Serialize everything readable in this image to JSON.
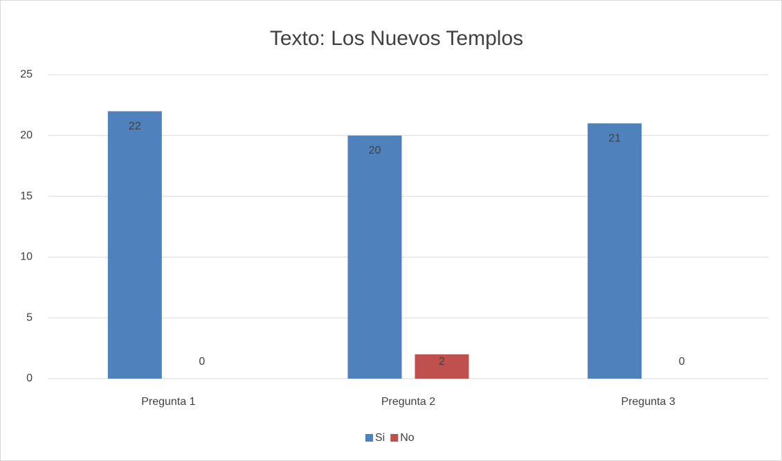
{
  "chart_data": {
    "type": "bar",
    "title": "Texto: Los Nuevos Templos",
    "categories": [
      "Pregunta 1",
      "Pregunta 2",
      "Pregunta 3"
    ],
    "series": [
      {
        "name": "Si",
        "color": "#4f81bd",
        "values": [
          22,
          20,
          21
        ]
      },
      {
        "name": "No",
        "color": "#c0504d",
        "values": [
          0,
          2,
          0
        ]
      }
    ],
    "ylim": [
      0,
      25
    ],
    "yticks": [
      0,
      5,
      10,
      15,
      20,
      25
    ],
    "grid": true,
    "legend": "bottom"
  }
}
